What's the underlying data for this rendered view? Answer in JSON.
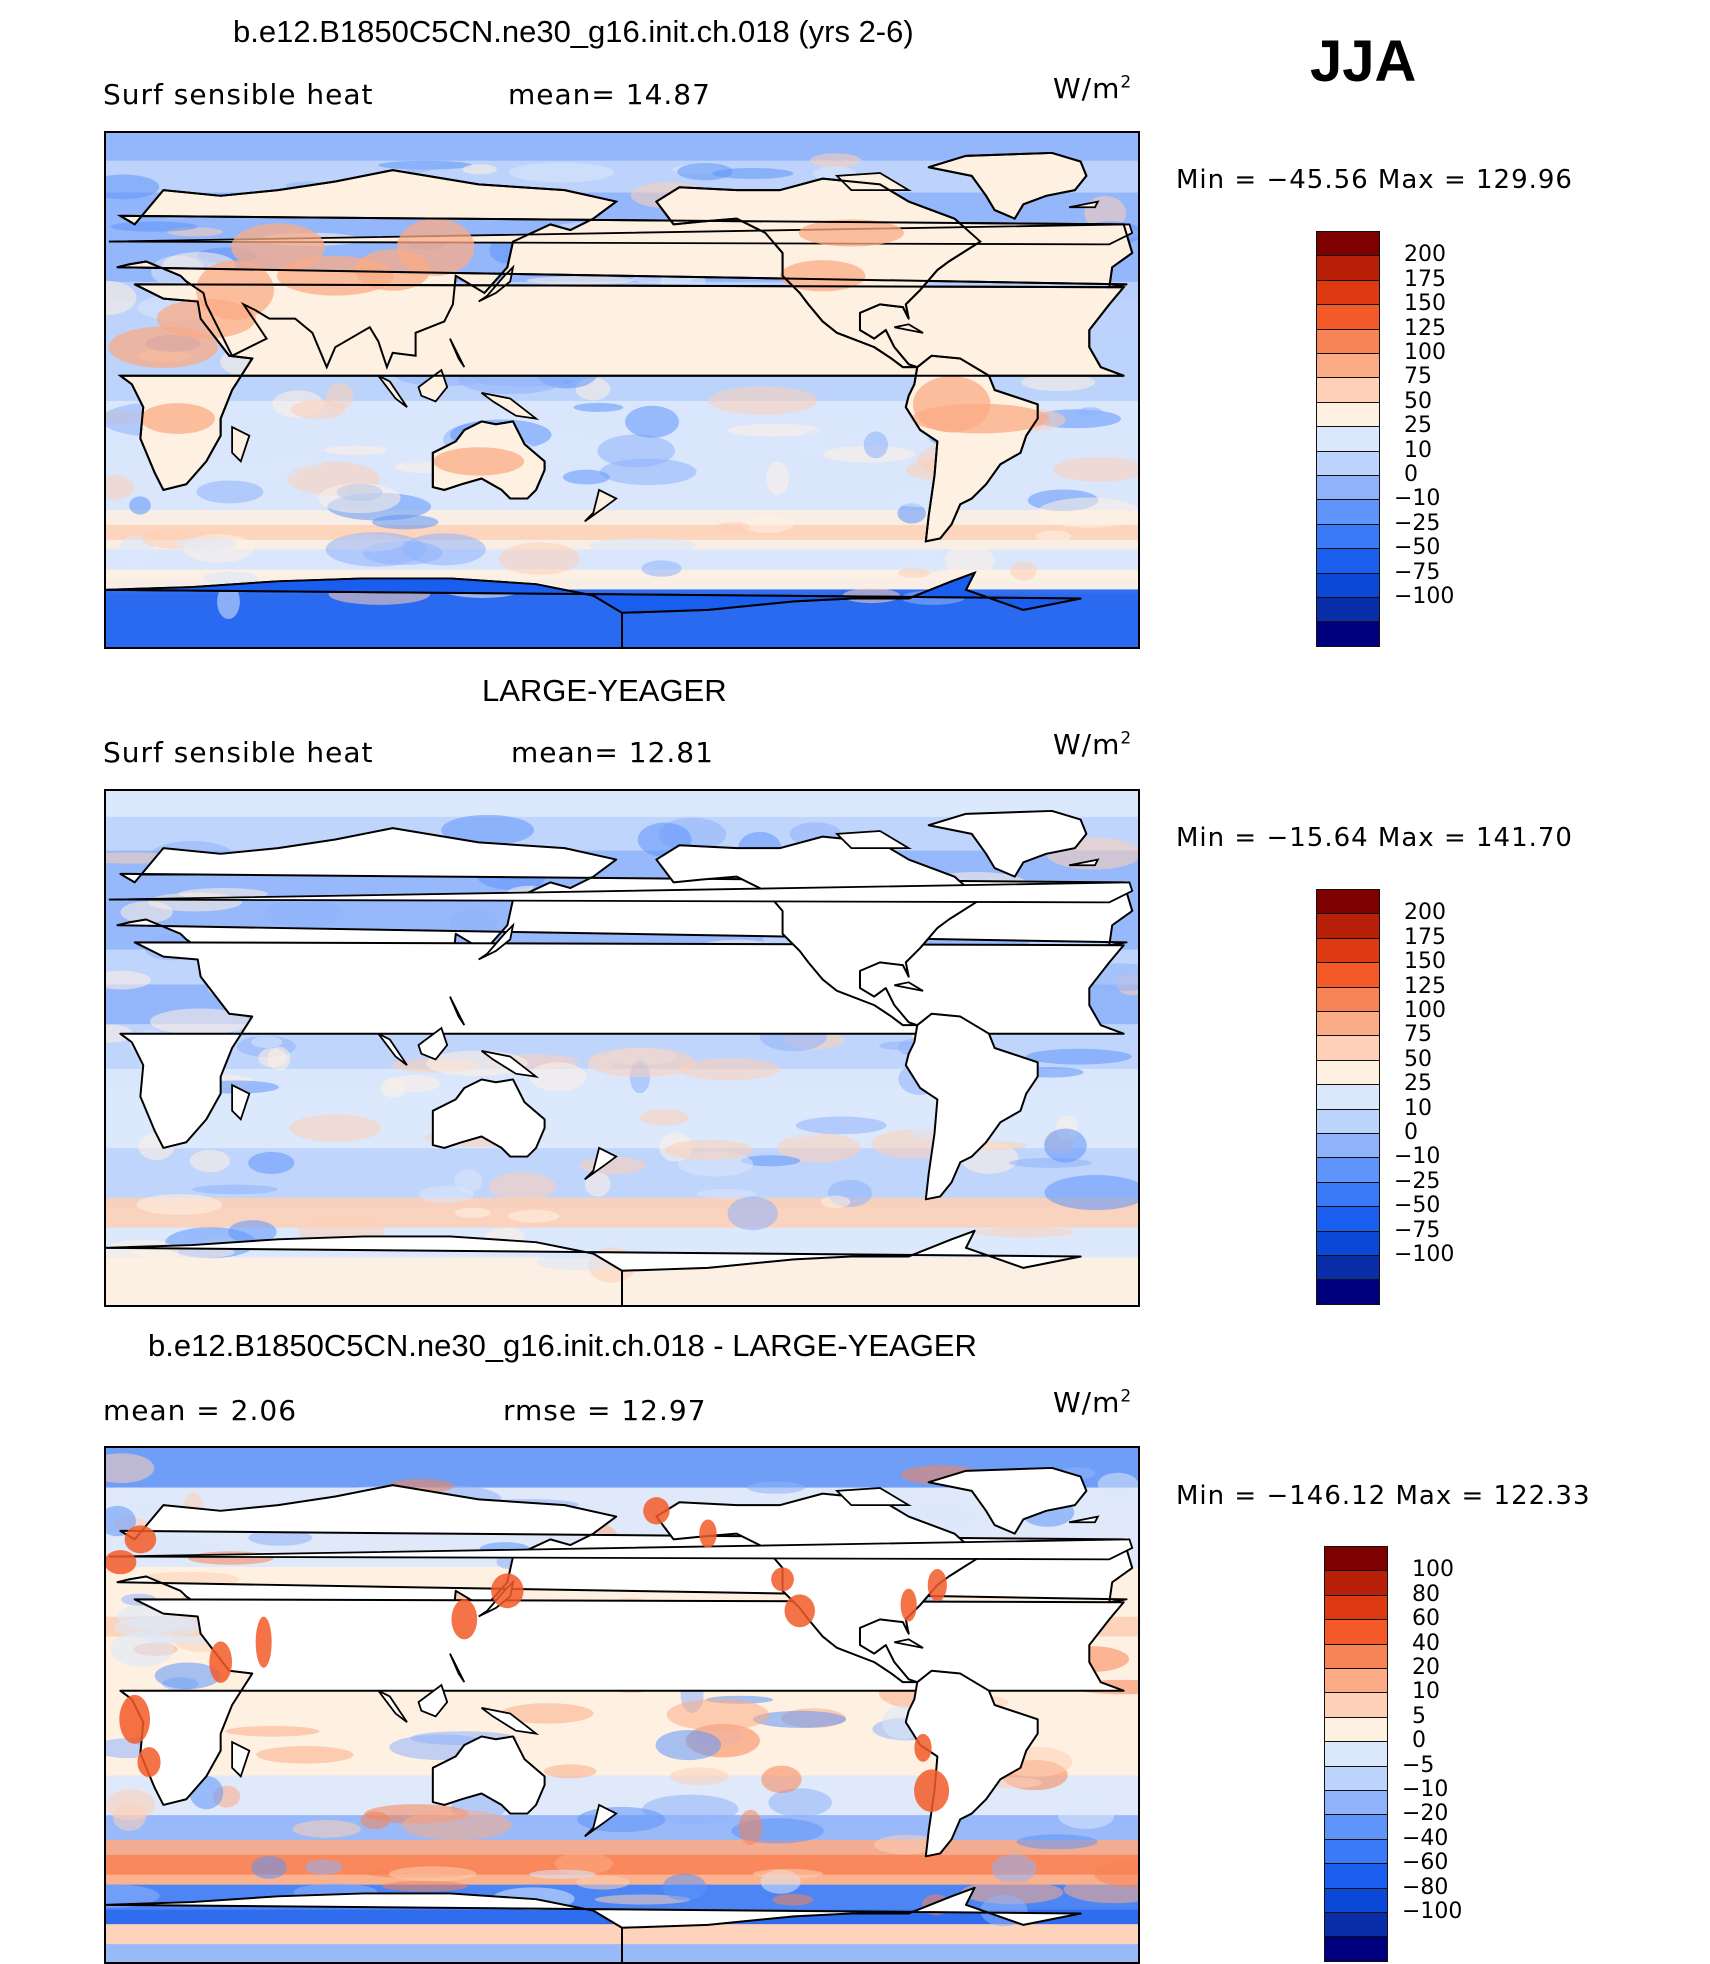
{
  "header": {
    "season": "JJA"
  },
  "colors": {
    "land": "#ffffff",
    "coast": "#000000",
    "abs_scale": [
      "#00007f",
      "#0a2eaa",
      "#0c48d8",
      "#1a5ef0",
      "#3a7af6",
      "#5f95fa",
      "#8fb2fb",
      "#bcd3fb",
      "#dbe8fc",
      "#fff1e2",
      "#fdd0b7",
      "#fbab86",
      "#f88356",
      "#f35a28",
      "#de3a12",
      "#b8200a",
      "#7f0000"
    ],
    "diff_scale": [
      "#00007f",
      "#0a2eaa",
      "#0c48d8",
      "#1a5ef0",
      "#3a7af6",
      "#5f95fa",
      "#8fb2fb",
      "#bcd3fb",
      "#dbe8fc",
      "#fff1e2",
      "#fdd0b7",
      "#fbab86",
      "#f88356",
      "#f35a28",
      "#de3a12",
      "#b8200a",
      "#7f0000"
    ]
  },
  "panels": [
    {
      "title": "b.e12.B1850C5CN.ne30_g16.init.ch.018 (yrs 2-6)",
      "left_label": "Surf  sensible  heat",
      "mid_label": "mean=   14.87",
      "units_base": "W/m",
      "units_exp": "2",
      "minmax": "Min  =  −45.56  Max  =  129.96",
      "colorbar_labels": [
        "200",
        "175",
        "150",
        "125",
        "100",
        "75",
        "50",
        "25",
        "10",
        "0",
        "−10",
        "−25",
        "−50",
        "−75",
        "−100"
      ],
      "land_filled": true,
      "ocean_base": "#bcd3fb"
    },
    {
      "title": "LARGE-YEAGER",
      "left_label": "Surf  sensible  heat",
      "mid_label": "mean=   12.81",
      "units_base": "W/m",
      "units_exp": "2",
      "minmax": "Min  =  −15.64  Max  =  141.70",
      "colorbar_labels": [
        "200",
        "175",
        "150",
        "125",
        "100",
        "75",
        "50",
        "25",
        "10",
        "0",
        "−10",
        "−25",
        "−50",
        "−75",
        "−100"
      ],
      "land_filled": false,
      "ocean_base": "#dbe8fc"
    },
    {
      "title": "b.e12.B1850C5CN.ne30_g16.init.ch.018 - LARGE-YEAGER",
      "left_label": "mean =     2.06",
      "mid_label": "rmse  =    12.97",
      "units_base": "W/m",
      "units_exp": "2",
      "minmax": "Min  =  −146.12  Max  =  122.33",
      "colorbar_labels": [
        "100",
        "80",
        "60",
        "40",
        "20",
        "10",
        "5",
        "0",
        "−5",
        "−10",
        "−20",
        "−40",
        "−60",
        "−80",
        "−100"
      ],
      "land_filled": false,
      "ocean_base": "#fff1e2"
    }
  ]
}
